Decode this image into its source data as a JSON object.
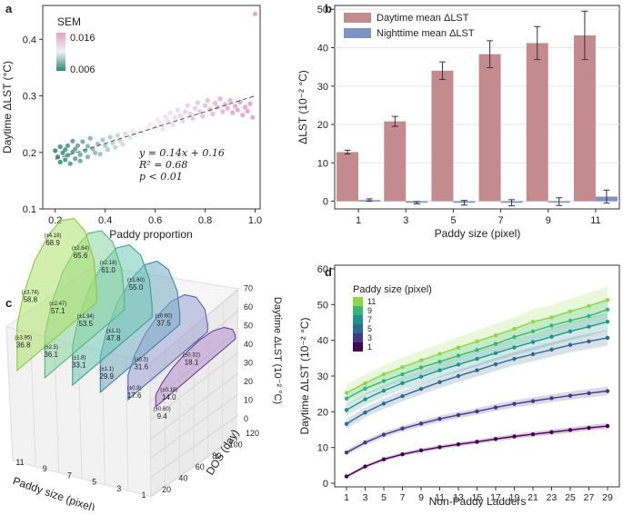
{
  "chart_data": [
    {
      "panel": "a",
      "type": "scatter",
      "xlabel": "Paddy proportion",
      "ylabel": "Daytime ΔLST (°C)",
      "xlim": [
        0.15,
        1.02
      ],
      "ylim": [
        0.1,
        0.46
      ],
      "xticks": [
        "0.2",
        "0.4",
        "0.6",
        "0.8",
        "1.0"
      ],
      "xtick_values": [
        0.2,
        0.4,
        0.6,
        0.8,
        1.0
      ],
      "yticks": [
        "0.1",
        "0.2",
        "0.3",
        "0.4"
      ],
      "ytick_values": [
        0.1,
        0.2,
        0.3,
        0.4
      ],
      "colorbar": {
        "title": "SEM",
        "max_label": "0.016",
        "min_label": "0.006",
        "color_high": "#e4a0c6",
        "color_mid": "#f2f2f2",
        "color_low": "#2e8a74"
      },
      "fit": {
        "slope": 0.14,
        "intercept": 0.16,
        "x_range": [
          0.2,
          1.0
        ]
      },
      "annotation": {
        "eq": "y = 0.14x + 0.16",
        "r2": "R² = 0.68",
        "p": "p < 0.01"
      },
      "points": [
        [
          0.2,
          0.203
        ],
        [
          0.21,
          0.192
        ],
        [
          0.22,
          0.21
        ],
        [
          0.22,
          0.183
        ],
        [
          0.23,
          0.199
        ],
        [
          0.24,
          0.205
        ],
        [
          0.24,
          0.187
        ],
        [
          0.25,
          0.212
        ],
        [
          0.25,
          0.195
        ],
        [
          0.26,
          0.18
        ],
        [
          0.27,
          0.201
        ],
        [
          0.27,
          0.22
        ],
        [
          0.28,
          0.206
        ],
        [
          0.28,
          0.189
        ],
        [
          0.29,
          0.212
        ],
        [
          0.3,
          0.196
        ],
        [
          0.3,
          0.185
        ],
        [
          0.31,
          0.219
        ],
        [
          0.32,
          0.203
        ],
        [
          0.33,
          0.211
        ],
        [
          0.33,
          0.192
        ],
        [
          0.34,
          0.225
        ],
        [
          0.35,
          0.206
        ],
        [
          0.36,
          0.199
        ],
        [
          0.37,
          0.215
        ],
        [
          0.38,
          0.197
        ],
        [
          0.39,
          0.222
        ],
        [
          0.4,
          0.212
        ],
        [
          0.41,
          0.205
        ],
        [
          0.42,
          0.227
        ],
        [
          0.43,
          0.217
        ],
        [
          0.44,
          0.209
        ],
        [
          0.45,
          0.23
        ],
        [
          0.46,
          0.22
        ],
        [
          0.47,
          0.214
        ],
        [
          0.48,
          0.233
        ],
        [
          0.5,
          0.226
        ],
        [
          0.51,
          0.237
        ],
        [
          0.52,
          0.23
        ],
        [
          0.54,
          0.24
        ],
        [
          0.55,
          0.232
        ],
        [
          0.57,
          0.243
        ],
        [
          0.58,
          0.25
        ],
        [
          0.6,
          0.246
        ],
        [
          0.61,
          0.258
        ],
        [
          0.62,
          0.252
        ],
        [
          0.63,
          0.241
        ],
        [
          0.64,
          0.263
        ],
        [
          0.65,
          0.256
        ],
        [
          0.66,
          0.27
        ],
        [
          0.67,
          0.249
        ],
        [
          0.68,
          0.262
        ],
        [
          0.69,
          0.275
        ],
        [
          0.7,
          0.265
        ],
        [
          0.71,
          0.255
        ],
        [
          0.72,
          0.272
        ],
        [
          0.73,
          0.283
        ],
        [
          0.74,
          0.268
        ],
        [
          0.75,
          0.26
        ],
        [
          0.76,
          0.278
        ],
        [
          0.77,
          0.288
        ],
        [
          0.78,
          0.272
        ],
        [
          0.79,
          0.264
        ],
        [
          0.8,
          0.283
        ],
        [
          0.81,
          0.292
        ],
        [
          0.82,
          0.276
        ],
        [
          0.83,
          0.268
        ],
        [
          0.84,
          0.287
        ],
        [
          0.85,
          0.28
        ],
        [
          0.86,
          0.295
        ],
        [
          0.87,
          0.272
        ],
        [
          0.88,
          0.285
        ],
        [
          0.89,
          0.278
        ],
        [
          0.9,
          0.292
        ],
        [
          0.91,
          0.27
        ],
        [
          0.92,
          0.282
        ],
        [
          0.93,
          0.275
        ],
        [
          0.94,
          0.289
        ],
        [
          0.95,
          0.266
        ],
        [
          0.96,
          0.28
        ],
        [
          0.97,
          0.273
        ],
        [
          0.98,
          0.286
        ],
        [
          0.99,
          0.262
        ],
        [
          1.0,
          0.445
        ]
      ]
    },
    {
      "panel": "b",
      "type": "bar",
      "xlabel": "Paddy size (pixel)",
      "ylabel": "ΔLST (10⁻² °C)",
      "categories": [
        "1",
        "3",
        "5",
        "7",
        "9",
        "11"
      ],
      "ylim": [
        -2,
        51
      ],
      "yticks": [
        "0",
        "10",
        "20",
        "30",
        "40",
        "50"
      ],
      "ytick_values": [
        0,
        10,
        20,
        30,
        40,
        50
      ],
      "series": [
        {
          "name": "Daytime mean ΔLST",
          "color": "#c48b8f",
          "values": [
            12.8,
            20.8,
            34.0,
            38.3,
            41.2,
            43.2
          ],
          "errors": [
            0.5,
            1.3,
            2.3,
            3.5,
            4.3,
            6.3
          ]
        },
        {
          "name": "Nighttime mean ΔLST",
          "color": "#7c93c4",
          "values": [
            0.3,
            -0.4,
            -0.4,
            -0.4,
            -0.1,
            1.2
          ],
          "errors": [
            0.3,
            0.3,
            0.6,
            0.8,
            1.0,
            1.7
          ]
        }
      ]
    },
    {
      "panel": "c",
      "type": "area",
      "xlabel": "Paddy size (pixel)",
      "ylabel": "DOS (day)",
      "zlabel": "Daytime ΔLST (10⁻² °C)",
      "categories": [
        "11",
        "9",
        "7",
        "5",
        "3",
        "1"
      ],
      "dos_ticks": [
        "20",
        "40",
        "60",
        "80",
        "100",
        "120"
      ],
      "z_ticks": [
        "0",
        "10",
        "20",
        "30",
        "40",
        "50",
        "60",
        "70"
      ],
      "series": [
        {
          "name": "11",
          "color": "#aee26b",
          "stroke": "#8acb3d",
          "peak": "68.9",
          "peak_se": "(±4.18)",
          "mid_hi": "58.8",
          "mid_hi_se": "(±3.74)",
          "low": "36.8",
          "low_se": "(±3.95)"
        },
        {
          "name": "9",
          "color": "#8bd4a0",
          "stroke": "#4fb87a",
          "peak": "65.6",
          "peak_se": "(±2.64)",
          "mid_hi": "57.1",
          "mid_hi_se": "(±2.47)",
          "low": "36.1",
          "low_se": "(±2.5)"
        },
        {
          "name": "7",
          "color": "#72c9b6",
          "stroke": "#2fa590",
          "peak": "61.0",
          "peak_se": "(±2.18)",
          "mid_hi": "53.5",
          "mid_hi_se": "(±1.94)",
          "low": "33.1",
          "low_se": "(±1.8)"
        },
        {
          "name": "5",
          "color": "#76abc3",
          "stroke": "#3f85a8",
          "peak": "55.0",
          "peak_se": "(±1.60)",
          "mid_hi": "47.8",
          "mid_hi_se": "(±1.1)",
          "low": "29.9",
          "low_se": "(±1.1)"
        },
        {
          "name": "3",
          "color": "#9ca3d2",
          "stroke": "#5564ad",
          "peak": "37.5",
          "peak_se": "(±0.60)",
          "mid_hi": "31.6",
          "mid_hi_se": "(±0.5)",
          "low": "17.6",
          "low_se": "(±0.9)"
        },
        {
          "name": "1",
          "color": "#b48fcc",
          "stroke": "#6f3f9a",
          "peak": "18.1",
          "peak_se": "(±0.32)",
          "mid_hi": "14.0",
          "mid_hi_se": "(±0.18)",
          "low": "9.4",
          "low_se": "(±0.60)"
        }
      ]
    },
    {
      "panel": "d",
      "type": "line",
      "xlabel": "Non-Paddy Ladders",
      "ylabel": "Daytime ΔLST (10⁻² °C)",
      "legend_title": "Paddy size (pixel)",
      "x": [
        1,
        3,
        5,
        7,
        9,
        11,
        13,
        15,
        17,
        19,
        21,
        23,
        25,
        27,
        29
      ],
      "xticks": [
        "1",
        "3",
        "5",
        "7",
        "9",
        "11",
        "13",
        "15",
        "17",
        "19",
        "21",
        "23",
        "25",
        "27",
        "29"
      ],
      "ylim": [
        -1,
        61
      ],
      "yticks": [
        "0",
        "10",
        "20",
        "30",
        "40",
        "50",
        "60"
      ],
      "ytick_values": [
        0,
        10,
        20,
        30,
        40,
        50,
        60
      ],
      "series": [
        {
          "name": "11",
          "color": "#8fd744",
          "band": 3.8,
          "values": [
            25.3,
            28.0,
            30.5,
            32.5,
            34.4,
            36.2,
            38.0,
            39.7,
            41.4,
            43.2,
            45.2,
            46.4,
            48.1,
            49.6,
            51.3
          ]
        },
        {
          "name": "9",
          "color": "#35b779",
          "band": 3.0,
          "values": [
            23.7,
            26.5,
            28.6,
            30.5,
            32.4,
            34.0,
            35.7,
            37.3,
            39.0,
            40.9,
            42.5,
            44.1,
            45.5,
            46.8,
            48.6
          ]
        },
        {
          "name": "7",
          "color": "#21918c",
          "band": 2.6,
          "values": [
            20.5,
            23.5,
            25.9,
            28.0,
            29.8,
            31.6,
            33.2,
            34.8,
            36.4,
            38.0,
            39.5,
            41.0,
            42.5,
            43.8,
            45.2
          ]
        },
        {
          "name": "5",
          "color": "#31688e",
          "band": 2.2,
          "values": [
            16.6,
            19.8,
            22.3,
            24.4,
            26.4,
            28.3,
            30.0,
            31.6,
            33.3,
            34.8,
            36.1,
            37.4,
            38.7,
            39.7,
            40.7
          ]
        },
        {
          "name": "3",
          "color": "#443983",
          "band": 1.2,
          "values": [
            8.6,
            11.4,
            13.6,
            15.3,
            16.7,
            18.0,
            19.1,
            20.1,
            21.2,
            22.2,
            23.0,
            23.8,
            24.5,
            25.2,
            25.8
          ]
        },
        {
          "name": "1",
          "color": "#440154",
          "band": 0.8,
          "values": [
            1.9,
            4.7,
            6.7,
            8.1,
            9.2,
            10.1,
            10.9,
            11.6,
            12.4,
            13.1,
            13.7,
            14.3,
            14.9,
            15.5,
            16.0
          ]
        }
      ]
    }
  ]
}
